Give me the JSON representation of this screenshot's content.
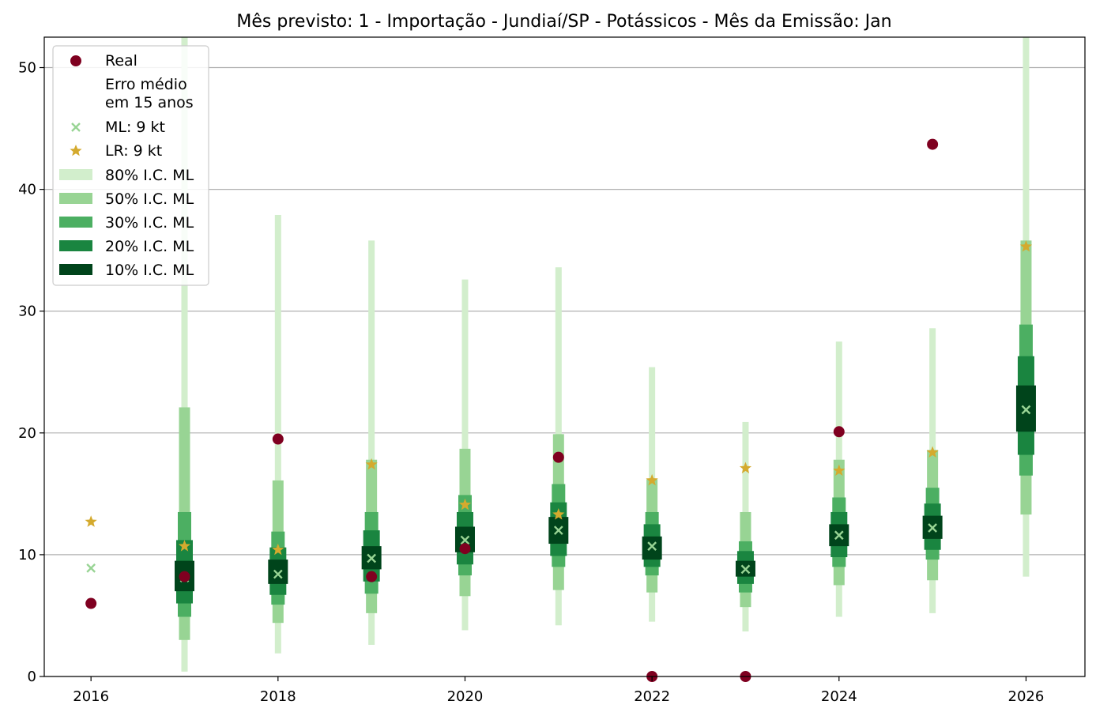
{
  "chart_data": {
    "type": "boxplot-intervals",
    "title": "Mês previsto: 1 - Importação - Jundiaí/SP - Potássicos - Mês da Emissão: Jan",
    "xlabel": "",
    "ylabel": "",
    "xlim": [
      2015.5,
      2026.63
    ],
    "ylim": [
      0,
      52.5
    ],
    "xticks": [
      2016,
      2018,
      2020,
      2022,
      2024,
      2026
    ],
    "yticks": [
      0,
      10,
      20,
      30,
      40,
      50
    ],
    "grid": "horizontal",
    "legend_position": "top-left",
    "legend": {
      "real": "Real",
      "error_header": [
        "Erro médio",
        "em 15 anos"
      ],
      "ml": "ML: 9 kt",
      "lr": "LR: 9 kt",
      "ci80": "80% I.C. ML",
      "ci50": "50% I.C. ML",
      "ci30": "30% I.C. ML",
      "ci20": "20% I.C. ML",
      "ci10": "10% I.C. ML"
    },
    "colors": {
      "real": "#7f0020",
      "ml": "#98d494",
      "lr": "#d4aa2e",
      "ci80": "#d2eecc",
      "ci50": "#98d494",
      "ci30": "#4caf62",
      "ci20": "#1a8540",
      "ci10": "#00441b"
    },
    "years": [
      2016,
      2017,
      2018,
      2019,
      2020,
      2021,
      2022,
      2023,
      2024,
      2025,
      2026
    ],
    "real": [
      6.0,
      8.2,
      19.5,
      8.2,
      10.5,
      18.0,
      0.0,
      0.0,
      20.1,
      43.7,
      null
    ],
    "ml": [
      8.9,
      8.1,
      8.4,
      9.7,
      11.2,
      12.0,
      10.7,
      8.8,
      11.6,
      12.2,
      21.9
    ],
    "lr": [
      12.7,
      10.7,
      10.4,
      17.4,
      14.1,
      13.3,
      16.1,
      17.1,
      16.9,
      18.4,
      35.3
    ],
    "ci80": [
      null,
      [
        0.4,
        52.5
      ],
      [
        1.9,
        37.9
      ],
      [
        2.6,
        35.8
      ],
      [
        3.8,
        32.6
      ],
      [
        4.2,
        33.6
      ],
      [
        4.5,
        25.4
      ],
      [
        3.7,
        20.9
      ],
      [
        4.9,
        27.5
      ],
      [
        5.2,
        28.6
      ],
      [
        8.2,
        52.5
      ]
    ],
    "ci50": [
      null,
      [
        3.0,
        22.1
      ],
      [
        4.4,
        16.1
      ],
      [
        5.2,
        17.8
      ],
      [
        6.6,
        18.7
      ],
      [
        7.1,
        19.9
      ],
      [
        6.9,
        16.2
      ],
      [
        5.7,
        13.5
      ],
      [
        7.5,
        17.8
      ],
      [
        7.9,
        18.6
      ],
      [
        13.3,
        35.8
      ]
    ],
    "ci30": [
      null,
      [
        4.9,
        13.5
      ],
      [
        5.9,
        11.9
      ],
      [
        6.8,
        13.5
      ],
      [
        8.3,
        14.9
      ],
      [
        9.0,
        15.8
      ],
      [
        8.3,
        13.5
      ],
      [
        6.9,
        11.1
      ],
      [
        9.0,
        14.7
      ],
      [
        9.6,
        15.5
      ],
      [
        16.5,
        28.9
      ]
    ],
    "ci20": [
      null,
      [
        6.0,
        11.2
      ],
      [
        6.7,
        10.6
      ],
      [
        7.8,
        12.0
      ],
      [
        9.2,
        13.5
      ],
      [
        9.9,
        14.3
      ],
      [
        9.0,
        12.5
      ],
      [
        7.6,
        10.3
      ],
      [
        9.8,
        13.5
      ],
      [
        10.4,
        14.2
      ],
      [
        18.2,
        26.3
      ]
    ],
    "ci10": [
      null,
      [
        7.0,
        9.5
      ],
      [
        7.6,
        9.6
      ],
      [
        8.8,
        10.7
      ],
      [
        10.2,
        12.3
      ],
      [
        10.9,
        13.1
      ],
      [
        9.6,
        11.5
      ],
      [
        8.2,
        9.5
      ],
      [
        10.7,
        12.5
      ],
      [
        11.3,
        13.2
      ],
      [
        20.1,
        23.9
      ]
    ]
  }
}
